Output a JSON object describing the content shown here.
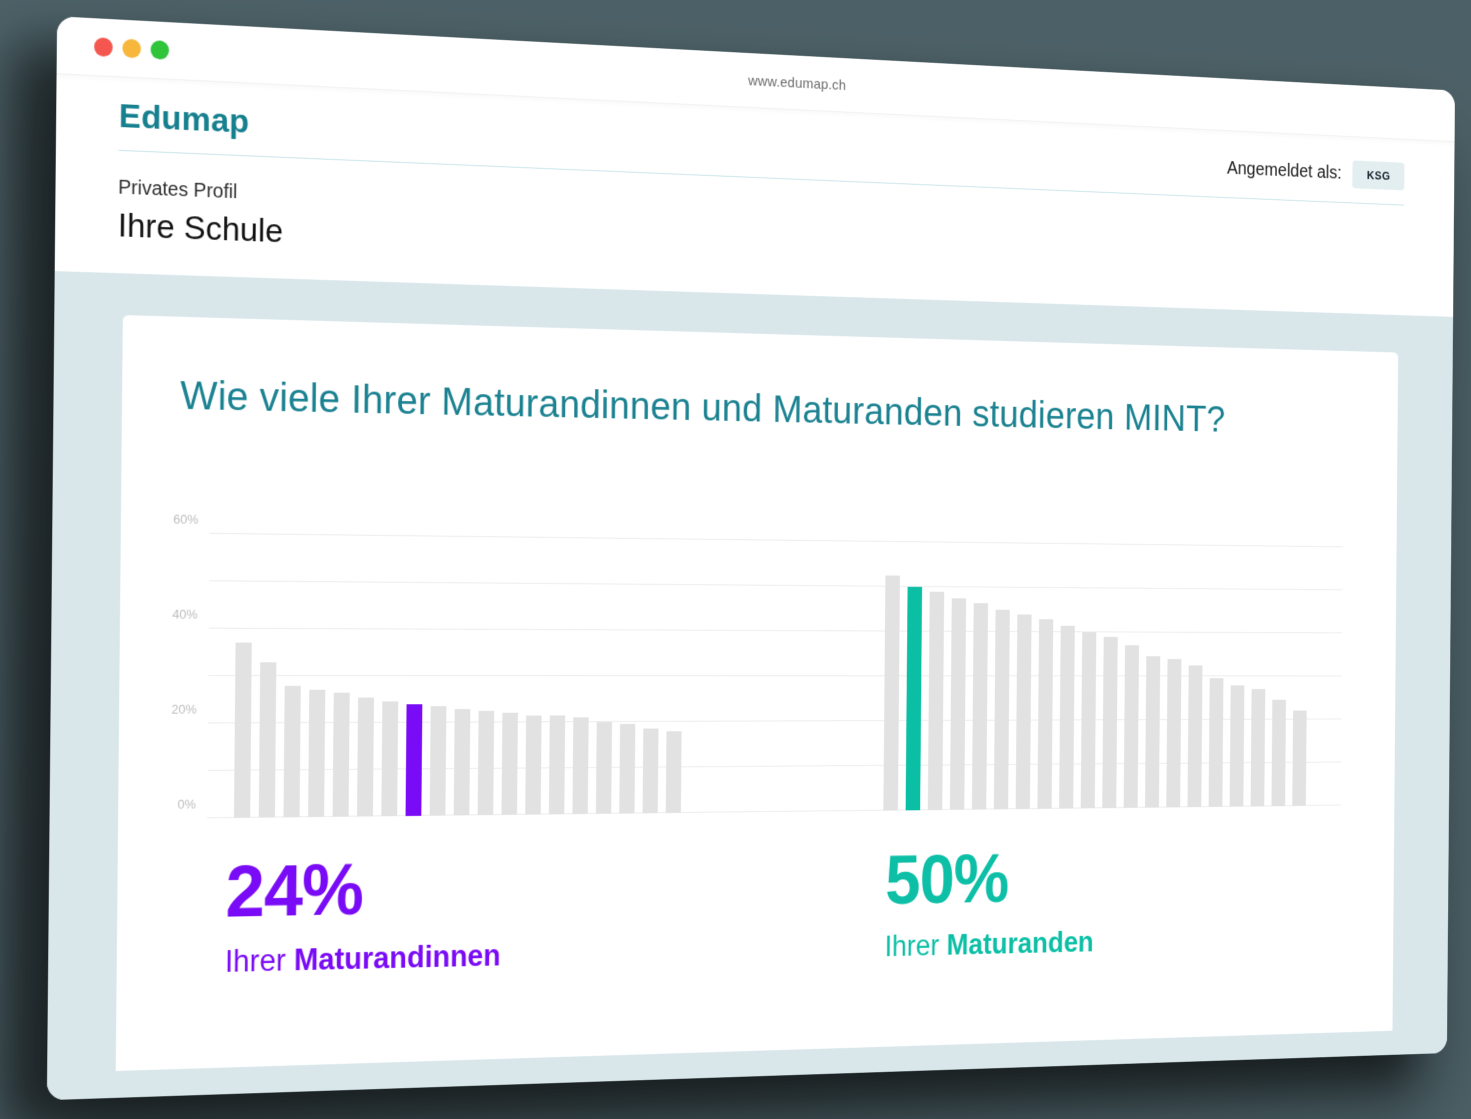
{
  "browser": {
    "url": "www.edumap.ch"
  },
  "header": {
    "brand": "Edumap",
    "logged_in_label": "Angemeldet als:",
    "logged_in_badge": "KSG",
    "profile_label": "Privates Profil",
    "profile_name": "Ihre Schule"
  },
  "chart_data": {
    "type": "bar",
    "title": "Wie viele Ihrer Maturandinnen und Maturanden studieren MINT?",
    "xlabel": "",
    "ylabel": "",
    "ylim": [
      0,
      60
    ],
    "grid": true,
    "grid_step_percent": 10,
    "y_tick_labels": [
      "0%",
      "20%",
      "40%",
      "60%"
    ],
    "y_tick_values": [
      0,
      20,
      40,
      60
    ],
    "bar_color": "#E2E2E2",
    "groups": [
      {
        "name": "Maturandinnen",
        "highlight_index": 7,
        "highlight_value": 24,
        "highlight_color": "#7A0BF6",
        "values": [
          37,
          33,
          28,
          27,
          26.5,
          25.5,
          24.5,
          24,
          23.5,
          23,
          22.5,
          22,
          21.5,
          21.5,
          21,
          20,
          19.5,
          18.5,
          18
        ]
      },
      {
        "name": "Maturanden",
        "highlight_index": 1,
        "highlight_value": 50,
        "highlight_color": "#0BBFA5",
        "values": [
          52.5,
          50,
          49,
          47.5,
          46.5,
          45,
          44,
          43,
          41.5,
          40,
          39,
          37,
          34.5,
          34,
          32.5,
          29.5,
          28,
          27,
          24.5,
          22
        ]
      }
    ]
  },
  "stats": {
    "left": {
      "value": "24%",
      "prefix": "Ihrer",
      "noun": "Maturandinnen",
      "color": "#7A0BF6"
    },
    "right": {
      "value": "50%",
      "prefix": "Ihrer",
      "noun": "Maturanden",
      "color": "#0CBFA6"
    }
  },
  "colors": {
    "page_background": "#4C6167",
    "brand_teal": "#17808F",
    "title_teal": "#1B8291",
    "content_background": "#D9E7EB",
    "badge_background": "#E3EEF1",
    "gridline": "#ECECEC",
    "bar_gray": "#E2E2E2",
    "accent_purple": "#7A0BF6",
    "accent_teal": "#0BBFA5"
  }
}
